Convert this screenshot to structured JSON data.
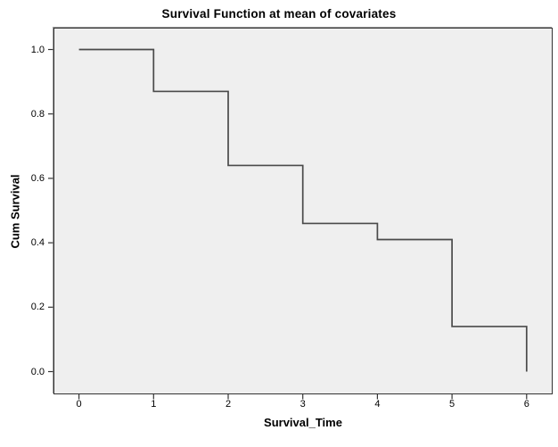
{
  "chart_data": {
    "type": "line",
    "subtype": "step-function-survival",
    "title": "Survival Function at mean of covariates",
    "xlabel": "Survival_Time",
    "ylabel": "Cum Survival",
    "x_ticks": [
      "0",
      "1",
      "2",
      "3",
      "4",
      "5",
      "6"
    ],
    "y_ticks": [
      "0.0",
      "0.2",
      "0.4",
      "0.6",
      "0.8",
      "1.0"
    ],
    "xlim": [
      -0.34,
      6.34
    ],
    "ylim": [
      -0.072,
      1.068
    ],
    "grid": false,
    "legend": null,
    "series": [
      {
        "name": "Cum Survival",
        "event_times": [
          0,
          1,
          2,
          3,
          4,
          5,
          6
        ],
        "survival_values": [
          1.0,
          0.87,
          0.64,
          0.46,
          0.41,
          0.14,
          0.0
        ],
        "points_x": [
          0,
          1,
          1,
          2,
          2,
          3,
          3,
          4,
          4,
          5,
          5,
          6,
          6
        ],
        "points_y": [
          1.0,
          1.0,
          0.87,
          0.87,
          0.64,
          0.64,
          0.46,
          0.46,
          0.41,
          0.41,
          0.14,
          0.14,
          0.0
        ]
      }
    ],
    "colors": {
      "line": "#4a4a4a",
      "plot_background": "#efefef",
      "frame": "#333333",
      "tick": "#333333",
      "text": "#000000",
      "page_background": "#ffffff"
    }
  }
}
